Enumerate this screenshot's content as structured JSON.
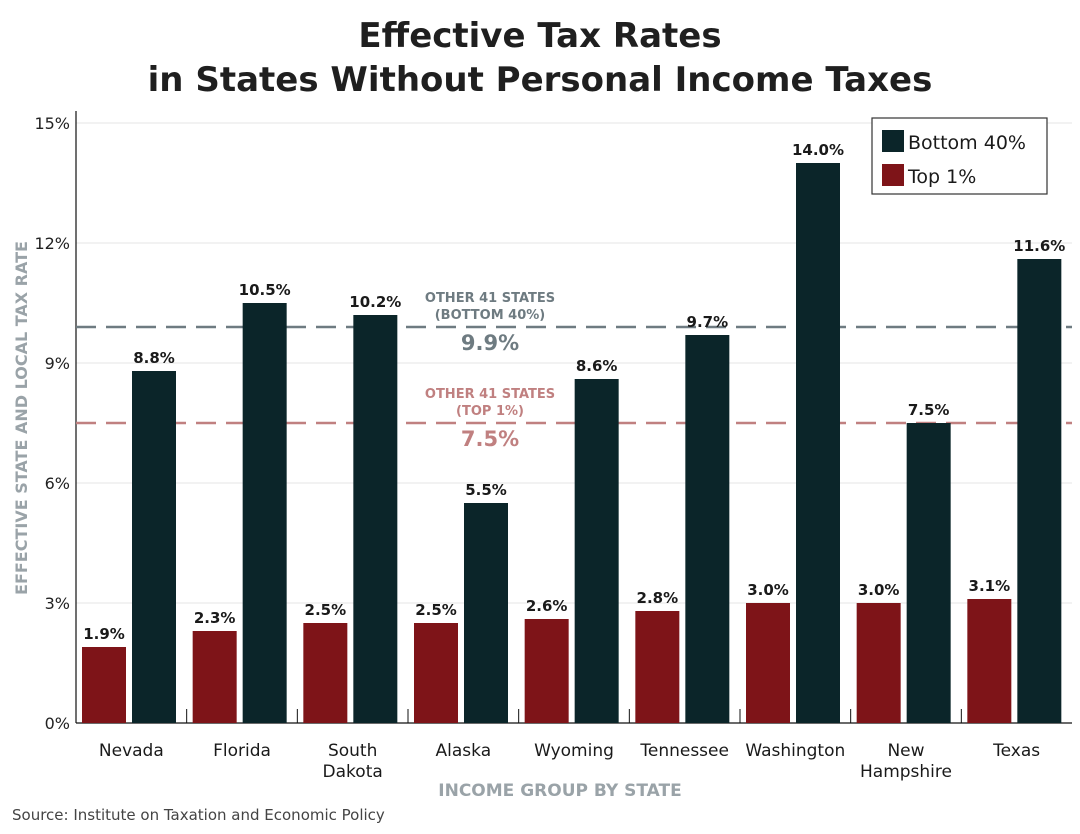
{
  "title_line1": "Effective Tax Rates",
  "title_line2": "in States Without Personal Income Taxes",
  "source": "Source: Institute on Taxation and Economic Policy",
  "colors": {
    "bottom40": "#0b2529",
    "top1": "#7e1418",
    "ref_bottom": "#6e7b81",
    "ref_top": "#c08080",
    "axis_label": "#9aa3a8"
  },
  "chart_data": {
    "type": "bar",
    "title": "Effective Tax Rates in States Without Personal Income Taxes",
    "xlabel": "INCOME GROUP BY STATE",
    "ylabel": "EFFECTIVE STATE AND LOCAL TAX RATE",
    "ylim": [
      0,
      15
    ],
    "yticks": [
      0,
      3,
      6,
      9,
      12,
      15
    ],
    "ytick_labels": [
      "0%",
      "3%",
      "6%",
      "9%",
      "12%",
      "15%"
    ],
    "grid": true,
    "legend_position": "top-right",
    "categories": [
      [
        "Nevada"
      ],
      [
        "Florida"
      ],
      [
        "South",
        "Dakota"
      ],
      [
        "Alaska"
      ],
      [
        "Wyoming"
      ],
      [
        "Tennessee"
      ],
      [
        "Washington"
      ],
      [
        "New",
        "Hampshire"
      ],
      [
        "Texas"
      ]
    ],
    "series": [
      {
        "name": "Top 1%",
        "color_key": "top1",
        "values": [
          1.9,
          2.3,
          2.5,
          2.5,
          2.6,
          2.8,
          3.0,
          3.0,
          3.1
        ],
        "labels": [
          "1.9%",
          "2.3%",
          "2.5%",
          "2.5%",
          "2.6%",
          "2.8%",
          "3.0%",
          "3.0%",
          "3.1%"
        ]
      },
      {
        "name": "Bottom 40%",
        "color_key": "bottom40",
        "values": [
          8.8,
          10.5,
          10.2,
          5.5,
          8.6,
          9.7,
          14.0,
          7.5,
          11.6
        ],
        "labels": [
          "8.8%",
          "10.5%",
          "10.2%",
          "5.5%",
          "8.6%",
          "9.7%",
          "14.0%",
          "7.5%",
          "11.6%"
        ]
      }
    ],
    "legend_order": [
      "Bottom 40%",
      "Top 1%"
    ],
    "reference_lines": [
      {
        "value": 9.9,
        "color_key": "ref_bottom",
        "label_lines": [
          "OTHER 41 STATES",
          "(BOTTOM 40%)"
        ],
        "value_label": "9.9%"
      },
      {
        "value": 7.5,
        "color_key": "ref_top",
        "label_lines": [
          "OTHER 41 STATES",
          "(TOP 1%)"
        ],
        "value_label": "7.5%"
      }
    ]
  }
}
